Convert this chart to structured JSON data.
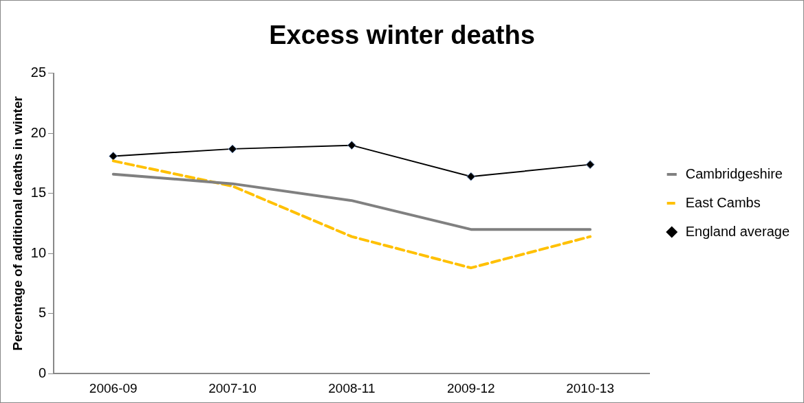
{
  "chart_data": {
    "type": "line",
    "title": "Excess winter deaths",
    "ylabel": "Percentage of additional deaths in winter",
    "categories": [
      "2006-09",
      "2007-10",
      "2008-11",
      "2009-12",
      "2010-13"
    ],
    "series": [
      {
        "name": "Cambridgeshire",
        "color": "#808080",
        "values": [
          16.6,
          15.8,
          14.4,
          12.0,
          12.0
        ],
        "line_style": "solid",
        "marker": "none"
      },
      {
        "name": "East Cambs",
        "color": "#ffc000",
        "values": [
          17.7,
          15.6,
          11.4,
          8.8,
          11.4
        ],
        "line_style": "dashed",
        "marker": "none"
      },
      {
        "name": "England average",
        "color": "#000000",
        "values": [
          18.1,
          18.7,
          19.0,
          16.4,
          17.4
        ],
        "line_style": "solid",
        "marker": "diamond"
      }
    ],
    "ylim": [
      0,
      25
    ],
    "yticks": [
      0,
      5,
      10,
      15,
      20,
      25
    ],
    "grid": false,
    "legend": "right"
  }
}
